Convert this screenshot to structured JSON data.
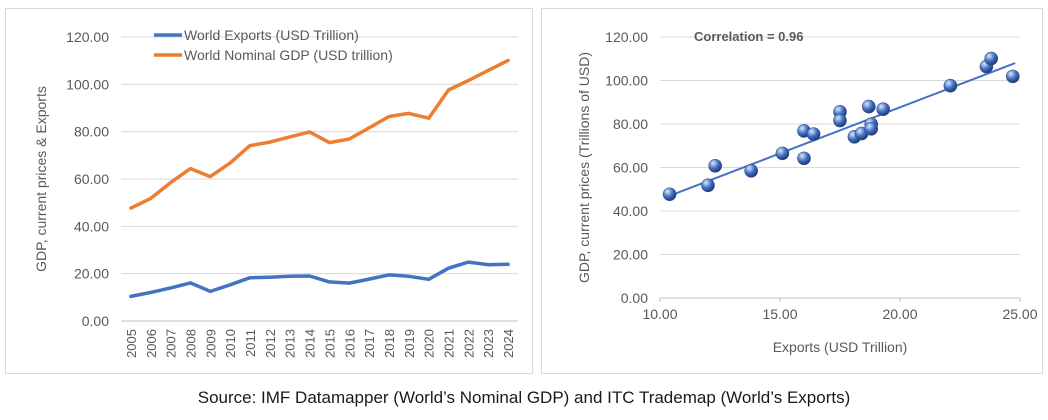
{
  "chart_data": [
    {
      "type": "line",
      "ylabel": "GDP, current prices & Exports",
      "ylim": [
        0,
        120
      ],
      "yticks": [
        "0.00",
        "20.00",
        "40.00",
        "60.00",
        "80.00",
        "100.00",
        "120.00"
      ],
      "categories": [
        "2005",
        "2006",
        "2007",
        "2008",
        "2009",
        "2010",
        "2011",
        "2012",
        "2013",
        "2014",
        "2015",
        "2016",
        "2017",
        "2018",
        "2019",
        "2020",
        "2021",
        "2022",
        "2023",
        "2024"
      ],
      "legend_position": "top",
      "series": [
        {
          "name": "World Exports (USD Trillion)",
          "color": "#4472c4",
          "values": [
            10.4,
            12.1,
            14.0,
            16.1,
            12.5,
            15.3,
            18.3,
            18.5,
            18.9,
            19.0,
            16.5,
            16.0,
            17.7,
            19.5,
            18.9,
            17.6,
            22.3,
            24.9,
            23.8,
            24.0
          ]
        },
        {
          "name": "World Nominal GDP (USD trillion)",
          "color": "#ed7d31",
          "values": [
            47.7,
            51.8,
            58.5,
            64.4,
            61.0,
            66.8,
            74.1,
            75.6,
            77.8,
            79.9,
            75.4,
            76.9,
            81.6,
            86.4,
            87.7,
            85.7,
            97.6,
            101.6,
            105.9,
            110.1
          ]
        }
      ]
    },
    {
      "type": "scatter",
      "title": "Correlation = 0.96",
      "xlabel": "Exports (USD Trillion)",
      "ylabel": "GDP, current prices (Trillions  of USD)",
      "xlim": [
        10,
        25
      ],
      "ylim": [
        0,
        120
      ],
      "xticks": [
        "10.00",
        "15.00",
        "20.00",
        "25.00"
      ],
      "yticks": [
        "0.00",
        "20.00",
        "40.00",
        "60.00",
        "80.00",
        "100.00",
        "120.00"
      ],
      "point_color": "#4472c4",
      "trendline": {
        "x": [
          10.4,
          24.8
        ],
        "y": [
          47.0,
          108.0
        ]
      },
      "points": [
        {
          "x": 10.4,
          "y": 47.7
        },
        {
          "x": 12.0,
          "y": 51.8
        },
        {
          "x": 12.3,
          "y": 60.8
        },
        {
          "x": 13.8,
          "y": 58.5
        },
        {
          "x": 15.1,
          "y": 66.5
        },
        {
          "x": 16.0,
          "y": 76.8
        },
        {
          "x": 16.0,
          "y": 64.2
        },
        {
          "x": 16.4,
          "y": 75.4
        },
        {
          "x": 17.5,
          "y": 85.6
        },
        {
          "x": 17.5,
          "y": 81.6
        },
        {
          "x": 18.1,
          "y": 74.1
        },
        {
          "x": 18.4,
          "y": 75.6
        },
        {
          "x": 18.7,
          "y": 88.0
        },
        {
          "x": 18.8,
          "y": 79.9
        },
        {
          "x": 18.8,
          "y": 77.8
        },
        {
          "x": 19.3,
          "y": 86.8
        },
        {
          "x": 22.1,
          "y": 97.6
        },
        {
          "x": 23.6,
          "y": 106.4
        },
        {
          "x": 23.8,
          "y": 110.1
        },
        {
          "x": 24.7,
          "y": 101.9
        }
      ]
    }
  ],
  "source_note": "Source: IMF Datamapper (World’s Nominal GDP) and ITC Trademap (World’s Exports)"
}
